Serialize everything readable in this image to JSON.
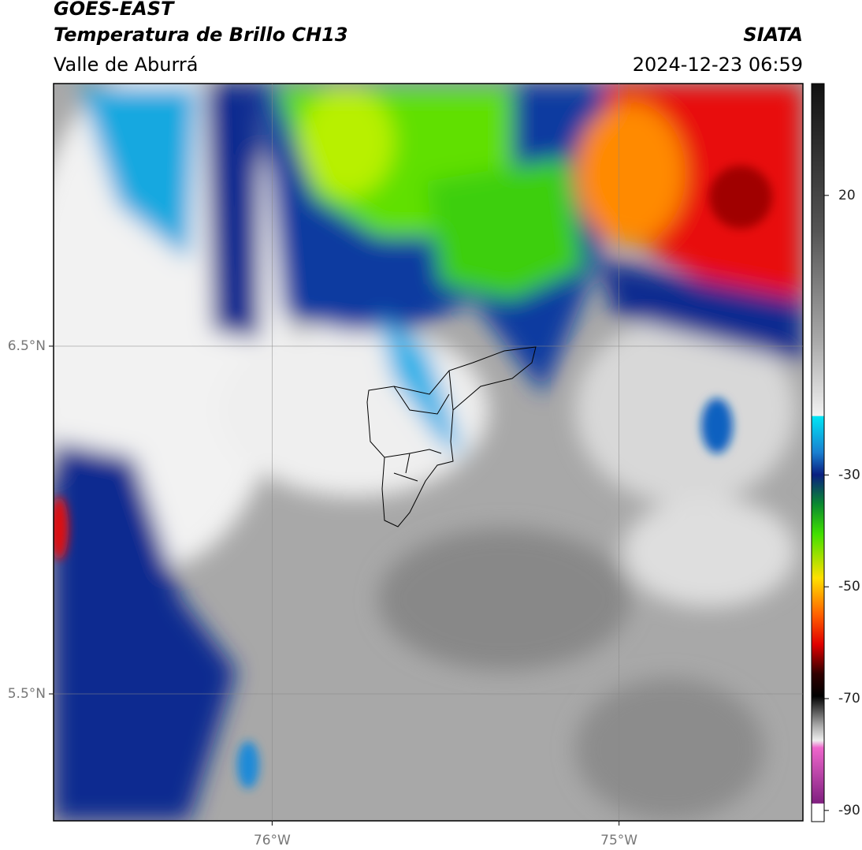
{
  "header": {
    "title": "GOES-EAST",
    "subtitle": "Temperatura de Brillo CH13",
    "region": "Valle de Aburrá",
    "source": "SIATA",
    "datetime": "2024-12-23 06:59"
  },
  "map": {
    "xlim": [
      -76.63,
      -74.47
    ],
    "ylim": [
      5.135,
      7.255
    ],
    "xticks": [
      {
        "value": -76,
        "label": "76°W"
      },
      {
        "value": -75,
        "label": "75°W"
      }
    ],
    "yticks": [
      {
        "value": 6.5,
        "label": "6.5°N"
      },
      {
        "value": 5.5,
        "label": "5.5°N"
      }
    ],
    "grid": true
  },
  "colorbar": {
    "lim": [
      -92,
      40
    ],
    "ticks": [
      20,
      -30,
      -50,
      -70,
      -90
    ]
  }
}
